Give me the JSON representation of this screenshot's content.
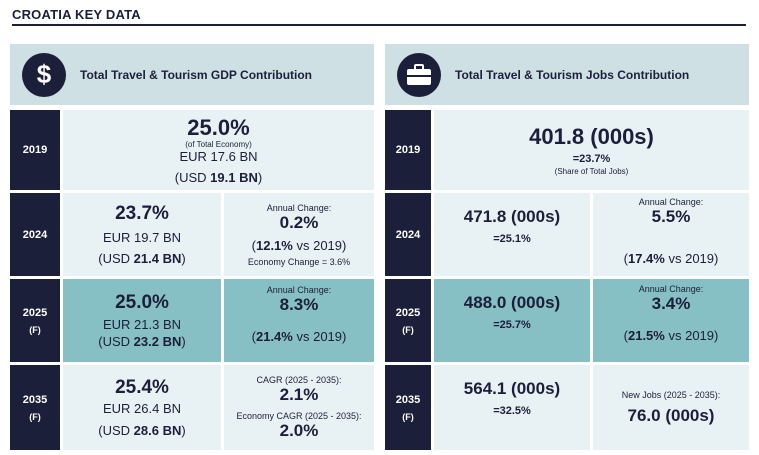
{
  "header": {
    "title": "CROATIA KEY DATA"
  },
  "gdp": {
    "title": "Total Travel & Tourism GDP Contribution",
    "icon": "dollar-icon",
    "r2019": {
      "year": "2019",
      "pct": "25.0%",
      "pct_note": "(of Total Economy)",
      "eur": "EUR 17.6 BN",
      "usd_pre": "(USD ",
      "usd_val": "19.1 BN",
      "usd_post": ")"
    },
    "r2024": {
      "year": "2024",
      "pct": "23.7%",
      "eur": "EUR 19.7 BN",
      "usd_pre": "(USD ",
      "usd_val": "21.4 BN",
      "usd_post": ")",
      "change_label": "Annual Change:",
      "change": "0.2%",
      "vs_pre": "(",
      "vs_val": "12.1%",
      "vs_post": " vs 2019)",
      "econ": "Economy Change = 3.6%"
    },
    "r2025": {
      "year": "2025",
      "year_sub": "(F)",
      "pct": "25.0%",
      "eur": "EUR 21.3 BN",
      "usd_pre": "(USD ",
      "usd_val": "23.2 BN",
      "usd_post": ")",
      "change_label": "Annual Change:",
      "change": "8.3%",
      "vs_pre": "(",
      "vs_val": "21.4%",
      "vs_post": " vs 2019)"
    },
    "r2035": {
      "year": "2035",
      "year_sub": "(F)",
      "pct": "25.4%",
      "eur": "EUR 26.4 BN",
      "usd_pre": "(USD ",
      "usd_val": "28.6 BN",
      "usd_post": ")",
      "cagr_label": "CAGR (2025 - 2035):",
      "cagr": "2.1%",
      "econ_cagr_label": "Economy CAGR (2025 - 2035):",
      "econ_cagr": "2.0%"
    }
  },
  "jobs": {
    "title": "Total Travel & Tourism Jobs Contribution",
    "icon": "briefcase-icon",
    "r2019": {
      "year": "2019",
      "val": "401.8  (000s)",
      "eq": "=23.7%",
      "note": "(Share of Total Jobs)"
    },
    "r2024": {
      "year": "2024",
      "val": "471.8  (000s)",
      "eq": "=25.1%",
      "change_label": "Annual Change:",
      "change": "5.5%",
      "vs_pre": "(",
      "vs_val": "17.4%",
      "vs_post": " vs 2019)"
    },
    "r2025": {
      "year": "2025",
      "year_sub": "(F)",
      "val": "488.0  (000s)",
      "eq": "=25.7%",
      "change_label": "Annual Change:",
      "change": "3.4%",
      "vs_pre": "(",
      "vs_val": "21.5%",
      "vs_post": " vs 2019)"
    },
    "r2035": {
      "year": "2035",
      "year_sub": "(F)",
      "val": "564.1  (000s)",
      "eq": "=32.5%",
      "new_jobs_label": "New Jobs (2025 - 2035):",
      "new_jobs": "76.0  (000s)"
    }
  }
}
